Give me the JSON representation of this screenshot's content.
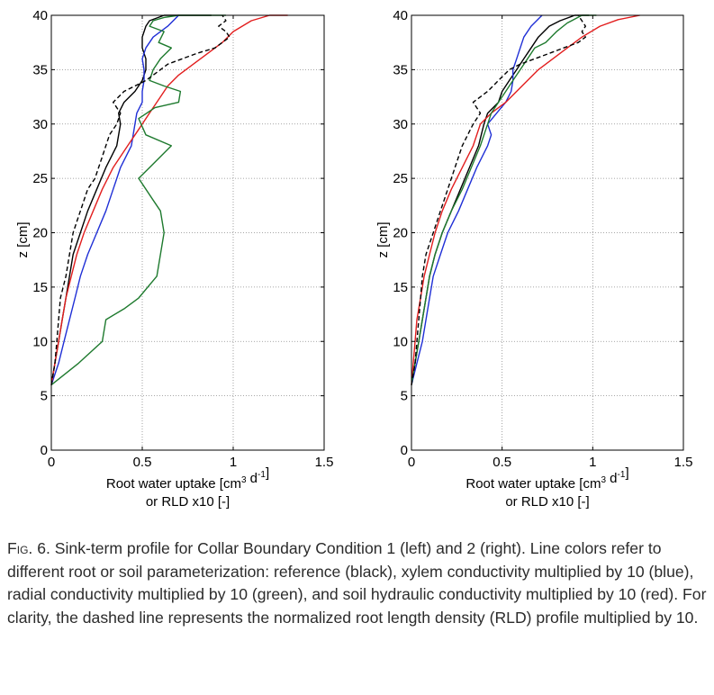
{
  "chart_data": [
    {
      "type": "line",
      "panel": "left",
      "xlabel_line1": "Root water uptake [cm",
      "xlabel_sup1": "3",
      "xlabel_mid": " d",
      "xlabel_sup2": "-1",
      "xlabel_end": "]",
      "xlabel_line2": "or RLD x10 [-]",
      "ylabel": "z [cm]",
      "xlim": [
        0,
        1.5
      ],
      "ylim": [
        0,
        40
      ],
      "xticks": [
        0,
        0.5,
        1,
        1.5
      ],
      "xtick_labels": [
        "0",
        "0.5",
        "1",
        "1.5"
      ],
      "yticks": [
        0,
        5,
        10,
        15,
        20,
        25,
        30,
        35,
        40
      ],
      "ytick_labels": [
        "0",
        "5",
        "10",
        "15",
        "20",
        "25",
        "30",
        "35",
        "40"
      ],
      "grid": true,
      "series": [
        {
          "color": "#000000",
          "dash": false,
          "x": [
            0,
            0.02,
            0.04,
            0.06,
            0.08,
            0.1,
            0.12,
            0.16,
            0.2,
            0.25,
            0.3,
            0.36,
            0.38,
            0.37,
            0.4,
            0.46,
            0.5,
            0.52,
            0.52,
            0.5,
            0.5,
            0.52,
            0.54,
            0.62,
            0.8,
            0.88
          ],
          "y": [
            6,
            8,
            10,
            12,
            14,
            16,
            18,
            20,
            22,
            24,
            26,
            28,
            30,
            31,
            32,
            33,
            34,
            35,
            36,
            37,
            38,
            39,
            39.5,
            40,
            40,
            40
          ]
        },
        {
          "color": "#1f2fd6",
          "dash": false,
          "x": [
            0,
            0.04,
            0.07,
            0.1,
            0.13,
            0.16,
            0.2,
            0.25,
            0.3,
            0.34,
            0.38,
            0.44,
            0.46,
            0.47,
            0.5,
            0.5,
            0.51,
            0.51,
            0.5,
            0.52,
            0.56,
            0.64,
            0.7
          ],
          "y": [
            6,
            8,
            10,
            12,
            14,
            16,
            18,
            20,
            22,
            24,
            26,
            28,
            30,
            31,
            32,
            33,
            34,
            35,
            36,
            37,
            38,
            39,
            40
          ]
        },
        {
          "color": "#e21e1e",
          "dash": false,
          "x": [
            0,
            0.02,
            0.04,
            0.06,
            0.08,
            0.11,
            0.14,
            0.18,
            0.23,
            0.28,
            0.34,
            0.42,
            0.48,
            0.52,
            0.56,
            0.6,
            0.64,
            0.7,
            0.78,
            0.86,
            0.94,
            1.0,
            1.1,
            1.2,
            1.3
          ],
          "y": [
            6,
            8,
            10,
            12,
            14,
            16,
            18,
            20,
            22,
            24,
            26,
            28,
            29.5,
            30.5,
            31.5,
            32.5,
            33.5,
            34.5,
            35.5,
            36.5,
            37.5,
            38.5,
            39.5,
            40,
            40
          ]
        },
        {
          "color": "#1e7a2e",
          "dash": false,
          "x": [
            0,
            0.15,
            0.28,
            0.3,
            0.4,
            0.48,
            0.58,
            0.6,
            0.62,
            0.6,
            0.56,
            0.48,
            0.54,
            0.6,
            0.66,
            0.52,
            0.48,
            0.57,
            0.7,
            0.71,
            0.62,
            0.54,
            0.56,
            0.6,
            0.66,
            0.59,
            0.62,
            0.54,
            0.56,
            0.62,
            0.7,
            0.78,
            0.92,
            0.96
          ],
          "y": [
            6,
            8,
            10,
            12,
            13,
            14,
            16,
            18,
            20,
            22,
            23,
            25,
            26,
            27,
            28,
            29,
            30.5,
            31.5,
            32,
            33,
            33.5,
            34,
            35,
            36,
            37,
            37.5,
            38.5,
            39,
            39.5,
            39.8,
            40,
            40,
            40,
            40
          ]
        },
        {
          "color": "#000000",
          "dash": true,
          "x": [
            0,
            0.02,
            0.03,
            0.04,
            0.05,
            0.08,
            0.1,
            0.12,
            0.16,
            0.2,
            0.24,
            0.26,
            0.28,
            0.3,
            0.32,
            0.36,
            0.38,
            0.34,
            0.4,
            0.46,
            0.52,
            0.56,
            0.6,
            0.64,
            0.72,
            0.8,
            0.9,
            0.98,
            0.96,
            0.92,
            0.96,
            0.94
          ],
          "y": [
            6,
            8,
            10,
            12,
            14,
            16,
            18,
            20,
            22,
            24,
            25,
            26,
            27,
            28,
            29,
            30,
            31,
            32,
            33,
            33.5,
            34,
            34.5,
            35,
            35.5,
            36,
            36.5,
            37,
            38,
            38.5,
            39,
            39.5,
            40
          ]
        }
      ]
    },
    {
      "type": "line",
      "panel": "right",
      "xlabel_line1": "Root water uptake [cm",
      "xlabel_sup1": "3",
      "xlabel_mid": " d",
      "xlabel_sup2": "-1",
      "xlabel_end": "]",
      "xlabel_line2": "or RLD x10 [-]",
      "ylabel": "z [cm]",
      "xlim": [
        0,
        1.5
      ],
      "ylim": [
        0,
        40
      ],
      "xticks": [
        0,
        0.5,
        1,
        1.5
      ],
      "xtick_labels": [
        "0",
        "0.5",
        "1",
        "1.5"
      ],
      "yticks": [
        0,
        5,
        10,
        15,
        20,
        25,
        30,
        35,
        40
      ],
      "ytick_labels": [
        "0",
        "5",
        "10",
        "15",
        "20",
        "25",
        "30",
        "35",
        "40"
      ],
      "grid": true,
      "series": [
        {
          "color": "#000000",
          "dash": false,
          "x": [
            0,
            0.02,
            0.04,
            0.06,
            0.08,
            0.1,
            0.13,
            0.17,
            0.22,
            0.27,
            0.32,
            0.37,
            0.4,
            0.42,
            0.48,
            0.5,
            0.54,
            0.58,
            0.62,
            0.66,
            0.7,
            0.76,
            0.82,
            0.9,
            0.98
          ],
          "y": [
            6,
            8,
            10,
            12,
            14,
            16,
            18,
            20,
            22,
            24,
            26,
            28,
            30,
            31,
            32,
            33,
            34,
            35,
            36,
            37,
            38,
            39,
            39.5,
            40,
            40
          ]
        },
        {
          "color": "#1f2fd6",
          "dash": false,
          "x": [
            0,
            0.03,
            0.06,
            0.08,
            0.1,
            0.12,
            0.16,
            0.2,
            0.26,
            0.31,
            0.36,
            0.42,
            0.44,
            0.42,
            0.47,
            0.52,
            0.55,
            0.56,
            0.56,
            0.58,
            0.6,
            0.62,
            0.66,
            0.72
          ],
          "y": [
            6,
            8,
            10,
            12,
            14,
            16,
            18,
            20,
            22,
            24,
            26,
            28,
            29,
            30,
            31,
            32,
            33,
            34,
            35,
            36,
            37,
            38,
            39,
            40
          ]
        },
        {
          "color": "#e21e1e",
          "dash": false,
          "x": [
            0,
            0.01,
            0.02,
            0.03,
            0.05,
            0.07,
            0.1,
            0.13,
            0.17,
            0.22,
            0.28,
            0.34,
            0.38,
            0.44,
            0.52,
            0.58,
            0.64,
            0.7,
            0.78,
            0.86,
            0.94,
            1.04,
            1.14,
            1.26
          ],
          "y": [
            6,
            8,
            10,
            12,
            14,
            16,
            18,
            20,
            22,
            24,
            26,
            28,
            30,
            31,
            32,
            33,
            34,
            35,
            36,
            37,
            38,
            39,
            39.6,
            40
          ]
        },
        {
          "color": "#1e7a2e",
          "dash": false,
          "x": [
            0,
            0.02,
            0.04,
            0.06,
            0.08,
            0.1,
            0.13,
            0.17,
            0.22,
            0.28,
            0.33,
            0.38,
            0.42,
            0.44,
            0.48,
            0.52,
            0.56,
            0.6,
            0.64,
            0.68,
            0.74,
            0.8,
            0.86,
            0.94,
            1.02
          ],
          "y": [
            6,
            8,
            10,
            12,
            14,
            16,
            18,
            20,
            22,
            24,
            26,
            28,
            30,
            31,
            32,
            33,
            34,
            35,
            36,
            37,
            37.5,
            38.5,
            39.3,
            40,
            40
          ]
        },
        {
          "color": "#000000",
          "dash": true,
          "x": [
            0,
            0.02,
            0.03,
            0.04,
            0.05,
            0.06,
            0.08,
            0.12,
            0.16,
            0.2,
            0.24,
            0.28,
            0.34,
            0.38,
            0.34,
            0.42,
            0.48,
            0.54,
            0.6,
            0.68,
            0.76,
            0.84,
            0.92,
            0.96,
            0.94,
            0.96,
            0.92
          ],
          "y": [
            6,
            8,
            10,
            12,
            14,
            16,
            18,
            20,
            22,
            24,
            26,
            28,
            30,
            31,
            32,
            33,
            34,
            35,
            35.5,
            36,
            36.5,
            37,
            37.5,
            38,
            38.5,
            39,
            40
          ]
        }
      ]
    }
  ],
  "caption": {
    "label": "Fig. 6.",
    "text": "Sink-term profile for Collar Boundary Condition 1 (left) and 2 (right). Line colors refer to different root or soil parameterization: reference (black), xylem conductivity multiplied by 10 (blue), radial conductivity multiplied by 10 (green), and soil hydraulic conductivity multiplied by 10 (red). For clarity, the dashed line represents the normalized root length density (RLD) profile multiplied by 10."
  }
}
